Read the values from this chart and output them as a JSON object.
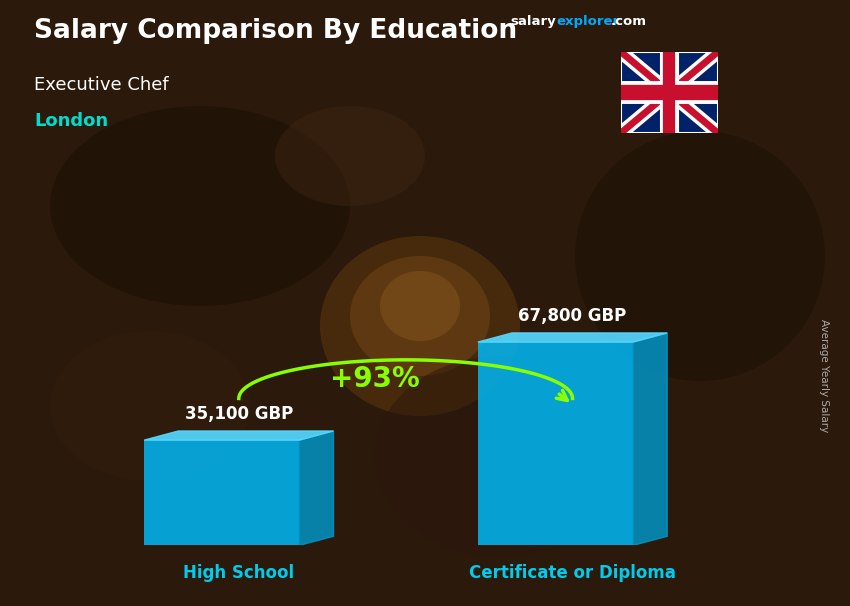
{
  "title_main": "Salary Comparison By Education",
  "subtitle1": "Executive Chef",
  "subtitle2": "London",
  "categories": [
    "High School",
    "Certificate or Diploma"
  ],
  "values": [
    35100,
    67800
  ],
  "value_labels": [
    "35,100 GBP",
    "67,800 GBP"
  ],
  "pct_change": "+93%",
  "bar_color_face": "#00BFFF",
  "bar_color_side": "#0099CC",
  "bar_color_top": "#55D8FF",
  "ylabel_rotated": "Average Yearly Salary",
  "subtitle2_color": "#00DDCC",
  "pct_color": "#88FF00",
  "arrow_color": "#88FF00",
  "cat_label_color": "#00CCEE",
  "value_label_color": "#FFFFFF",
  "title_color": "#FFFFFF",
  "subtitle1_color": "#FFFFFF",
  "ylabel_color": "#AAAAAA",
  "salary_color": "#FFFFFF",
  "explorer_color": "#00AAFF",
  "bg_colors": [
    "#2A1A0A",
    "#3D2510",
    "#4A2D12",
    "#5C3818",
    "#3A2208",
    "#2A1508"
  ],
  "bar_alpha": 0.82
}
